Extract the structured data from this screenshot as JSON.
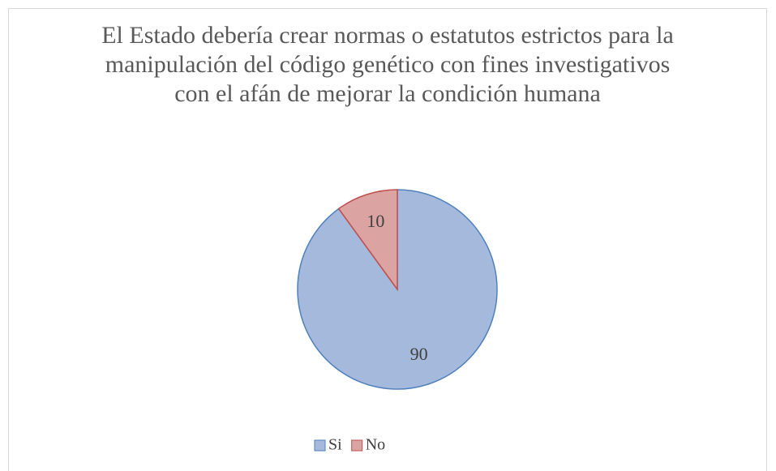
{
  "chart_data": {
    "type": "pie",
    "title": "El Estado debería crear normas o estatutos estrictos para la manipulación del código genético con fines investigativos con el afán de mejorar la condición humana",
    "categories": [
      "Si",
      "No"
    ],
    "values": [
      90,
      10
    ],
    "colors": [
      "#a5b9dd",
      "#dba3a2"
    ],
    "stroke_colors": [
      "#4f81bd",
      "#c0504d"
    ],
    "legend": "bottom"
  }
}
